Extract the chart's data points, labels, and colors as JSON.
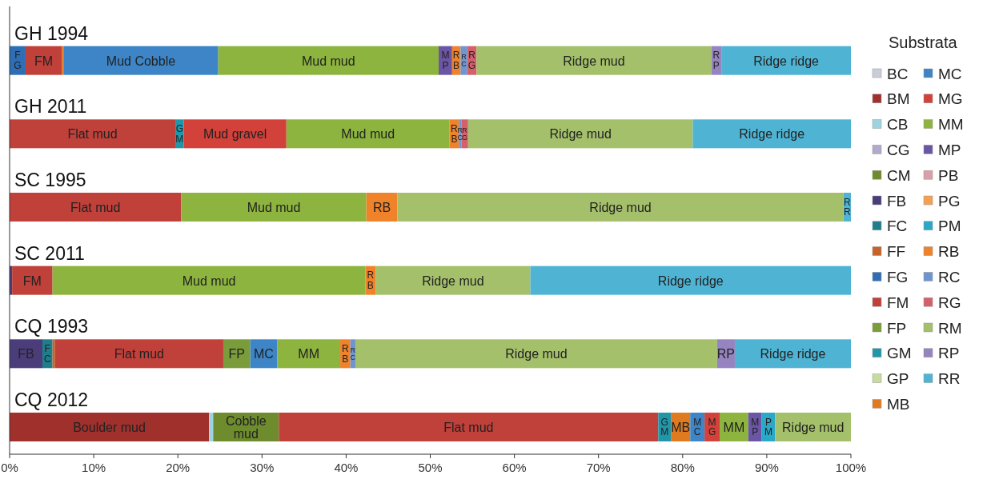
{
  "chart_data": {
    "type": "bar",
    "orientation": "horizontal",
    "stacked": true,
    "legend": "right",
    "legend_title": "Substrata",
    "categories": [
      "GH 1994",
      "GH 2011",
      "SC 1995",
      "SC 2011",
      "CQ 1993",
      "CQ 2012"
    ],
    "xlim": [
      0,
      100
    ],
    "xticks": [
      {
        "value": 0,
        "label": "0%"
      },
      {
        "value": 10,
        "label": "10%"
      },
      {
        "value": 20,
        "label": "20%"
      },
      {
        "value": 30,
        "label": "30%"
      },
      {
        "value": 40,
        "label": "40%"
      },
      {
        "value": 50,
        "label": "50%"
      },
      {
        "value": 60,
        "label": "60%"
      },
      {
        "value": 70,
        "label": "70%"
      },
      {
        "value": 80,
        "label": "80%"
      },
      {
        "value": 90,
        "label": "90%"
      },
      {
        "value": 100,
        "label": "100%"
      }
    ],
    "series": [
      {
        "name": "BC",
        "color": "#c8cdd8",
        "values": [
          null,
          null,
          null,
          null,
          null,
          null
        ]
      },
      {
        "name": "BM",
        "color": "#a0302c",
        "values": [
          null,
          null,
          null,
          null,
          null,
          23.7
        ],
        "value_labels": [
          null,
          null,
          null,
          null,
          null,
          "Boulder mud"
        ]
      },
      {
        "name": "CB",
        "color": "#9dd3e0",
        "values": [
          null,
          null,
          null,
          null,
          null,
          0.5
        ]
      },
      {
        "name": "CG",
        "color": "#b3a9cc",
        "values": [
          null,
          null,
          null,
          null,
          null,
          null
        ]
      },
      {
        "name": "CM",
        "color": "#6e8b2e",
        "values": [
          null,
          null,
          null,
          null,
          null,
          7.8
        ],
        "value_labels": [
          null,
          null,
          null,
          null,
          null,
          "Cobble mud"
        ]
      },
      {
        "name": "FB",
        "color": "#4b3d7a",
        "values": [
          null,
          null,
          null,
          0.3,
          3.9,
          null
        ],
        "value_labels": [
          null,
          null,
          null,
          null,
          "FB",
          null
        ]
      },
      {
        "name": "FC",
        "color": "#1f7e8c",
        "values": [
          null,
          null,
          null,
          null,
          1.2,
          null
        ],
        "value_labels": [
          null,
          null,
          null,
          null,
          "FC",
          null
        ]
      },
      {
        "name": "FF",
        "color": "#c8642a",
        "values": [
          null,
          null,
          null,
          null,
          0.3,
          null
        ]
      },
      {
        "name": "FG",
        "color": "#2f6eb5",
        "values": [
          1.9,
          null,
          null,
          null,
          null,
          null
        ],
        "value_labels": [
          "FG",
          null,
          null,
          null,
          null,
          null
        ]
      },
      {
        "name": "FM",
        "color": "#c0403a",
        "values": [
          4.3,
          19.7,
          20.4,
          4.8,
          20.0,
          45.1
        ],
        "value_labels": [
          "FM",
          "Flat mud",
          "Flat mud",
          "FM",
          "Flat mud",
          "Flat mud"
        ]
      },
      {
        "name": "FP",
        "color": "#7a9c3a",
        "values": [
          null,
          null,
          null,
          null,
          3.2,
          null
        ],
        "value_labels": [
          null,
          null,
          null,
          null,
          "FP",
          null
        ]
      },
      {
        "name": "GM",
        "color": "#2196a8",
        "values": [
          null,
          1.0,
          null,
          null,
          null,
          1.5
        ],
        "value_labels": [
          null,
          "GM",
          null,
          null,
          null,
          "GM"
        ]
      },
      {
        "name": "GP",
        "color": "#c7dba0",
        "values": [
          null,
          null,
          null,
          null,
          null,
          null
        ]
      },
      {
        "name": "MB",
        "color": "#e07a20",
        "values": [
          0.2,
          null,
          null,
          null,
          null,
          2.3
        ],
        "value_labels": [
          null,
          null,
          null,
          null,
          null,
          "MB"
        ]
      },
      {
        "name": "MC",
        "color": "#3d85c6",
        "values": [
          18.4,
          null,
          null,
          null,
          3.2,
          1.7
        ],
        "value_labels": [
          "Mud Cobble",
          null,
          null,
          null,
          "MC",
          "MC"
        ]
      },
      {
        "name": "MG",
        "color": "#d2413a",
        "values": [
          null,
          12.2,
          null,
          null,
          null,
          1.8
        ],
        "value_labels": [
          null,
          "Mud gravel",
          null,
          null,
          null,
          "MG"
        ]
      },
      {
        "name": "MM",
        "color": "#8db43e",
        "values": [
          26.2,
          19.4,
          22.0,
          37.2,
          7.5,
          3.4
        ],
        "value_labels": [
          "Mud mud",
          "Mud mud",
          "Mud mud",
          "Mud mud",
          "MM",
          "MM"
        ]
      },
      {
        "name": "MP",
        "color": "#6b55a5",
        "values": [
          1.6,
          null,
          null,
          null,
          null,
          1.6
        ],
        "value_labels": [
          "MP",
          null,
          null,
          null,
          null,
          "MP"
        ]
      },
      {
        "name": "PB",
        "color": "#d9a0a8",
        "values": [
          null,
          null,
          null,
          null,
          null,
          null
        ]
      },
      {
        "name": "PG",
        "color": "#f5a050",
        "values": [
          null,
          null,
          null,
          null,
          null,
          null
        ]
      },
      {
        "name": "PM",
        "color": "#2ba8c8",
        "values": [
          null,
          null,
          null,
          null,
          null,
          1.6
        ],
        "value_labels": [
          null,
          null,
          null,
          null,
          null,
          "PM"
        ]
      },
      {
        "name": "RB",
        "color": "#f0822a",
        "values": [
          1.0,
          1.1,
          3.7,
          1.2,
          1.2,
          null
        ],
        "value_labels": [
          "RB",
          "RB",
          "RB",
          "RB",
          "RB",
          null
        ]
      },
      {
        "name": "RC",
        "color": "#6f95cf",
        "values": [
          0.8,
          0.3,
          null,
          null,
          0.6,
          null
        ],
        "value_labels": [
          "RC",
          "RC",
          null,
          null,
          "RC",
          null
        ]
      },
      {
        "name": "RG",
        "color": "#d4606a",
        "values": [
          1.1,
          0.8,
          null,
          null,
          null,
          null
        ],
        "value_labels": [
          "RG",
          "RG",
          null,
          null,
          null,
          null
        ]
      },
      {
        "name": "RM",
        "color": "#a4c06a",
        "values": [
          27.9,
          26.7,
          53.0,
          18.4,
          43.0,
          9.0
        ],
        "value_labels": [
          "Ridge mud",
          "Ridge mud",
          "Ridge mud",
          "Ridge mud",
          "Ridge mud",
          "Ridge mud"
        ]
      },
      {
        "name": "RP",
        "color": "#9684c0",
        "values": [
          1.2,
          null,
          null,
          null,
          2.1,
          null
        ],
        "value_labels": [
          "RP",
          null,
          null,
          null,
          "RP",
          null
        ]
      },
      {
        "name": "RR",
        "color": "#4fb4d4",
        "values": [
          15.4,
          18.8,
          0.9,
          38.1,
          13.8,
          null
        ],
        "value_labels": [
          "Ridge ridge",
          "Ridge ridge",
          "RR",
          "Ridge ridge",
          "Ridge ridge",
          null
        ]
      }
    ]
  }
}
